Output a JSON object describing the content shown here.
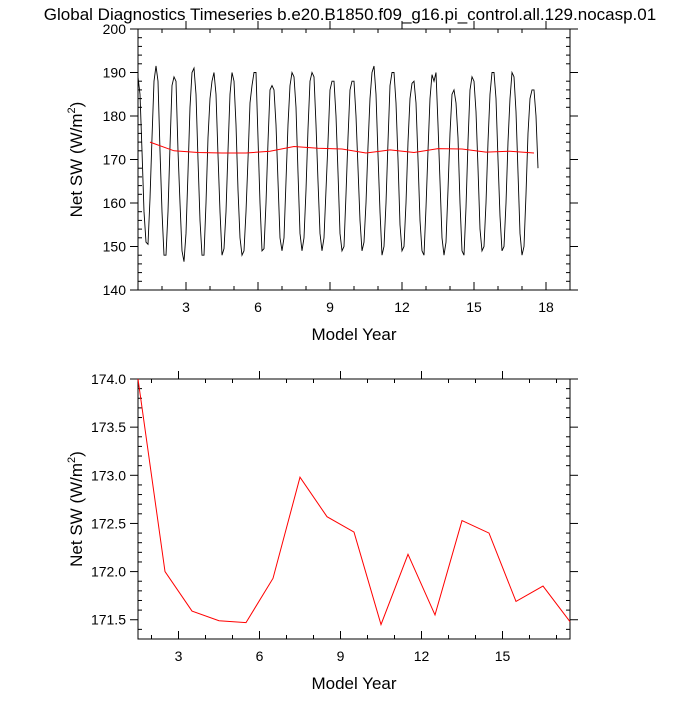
{
  "title": "Global Diagnostics Timeseries b.e20.B1850.f09_g16.pi_control.all.129.nocasp.01",
  "colors": {
    "monthly_line": "#000000",
    "annual_line": "#ff0000",
    "frame": "#000000"
  },
  "chart_data": [
    {
      "type": "line",
      "name": "top-panel",
      "xlabel": "Model Year",
      "ylabel_main": "Net SW (W/m",
      "ylabel_sup": "2",
      "ylabel_close": ")",
      "xlim": [
        1,
        19
      ],
      "ylim": [
        140,
        200
      ],
      "xticks": [
        3,
        6,
        9,
        12,
        15,
        18
      ],
      "yticks": [
        140,
        150,
        160,
        170,
        180,
        190,
        200
      ],
      "grid": false,
      "series": [
        {
          "role": "monthly",
          "color": "#000000",
          "x_start": 1.0,
          "x_step": 0.0833333,
          "values": [
            189,
            185,
            172,
            158,
            151,
            150.5,
            161,
            175,
            188,
            191.5,
            188,
            172,
            158,
            148,
            148,
            158,
            173,
            187,
            189,
            188,
            172,
            160,
            149,
            146.5,
            153,
            167,
            182,
            190,
            191,
            185,
            170,
            156,
            148,
            148,
            160,
            175,
            184,
            188,
            190,
            185,
            171,
            158,
            148,
            149.5,
            158,
            172,
            185,
            190,
            188,
            178,
            163,
            152,
            148,
            149,
            158,
            170,
            183,
            187,
            190,
            190,
            175,
            160,
            149,
            149.5,
            160,
            174,
            186,
            187,
            186,
            178,
            165,
            152,
            149,
            152,
            165,
            178,
            187,
            190,
            189,
            182,
            167,
            153,
            149,
            152,
            163,
            177,
            188,
            190,
            189,
            178,
            165,
            153,
            149,
            152,
            163,
            174,
            186,
            188,
            188,
            180,
            167,
            153,
            149,
            150,
            162,
            175,
            186,
            188,
            188,
            180,
            168,
            156,
            149,
            151,
            160,
            173,
            184,
            190,
            191.5,
            185,
            171,
            158,
            148,
            150,
            160,
            174,
            187,
            190,
            190,
            183,
            170,
            155,
            149,
            150,
            160,
            174,
            184,
            187.5,
            188,
            183,
            170,
            156,
            149,
            148,
            159,
            172,
            184,
            189.5,
            188,
            190,
            178,
            165,
            152,
            148,
            151,
            163,
            176,
            185,
            186,
            183,
            175,
            160,
            149,
            148,
            159,
            174,
            186,
            189,
            188,
            181,
            168,
            154,
            149,
            150,
            160,
            174,
            185,
            190,
            190,
            184,
            170,
            157,
            149,
            150,
            160,
            174,
            184,
            190,
            189,
            181,
            167,
            153,
            148,
            150,
            162,
            176,
            184,
            186,
            186,
            180,
            168
          ]
        },
        {
          "role": "annual",
          "color": "#ff0000",
          "x": [
            1.5,
            2.5,
            3.5,
            4.5,
            5.5,
            6.5,
            7.5,
            8.5,
            9.5,
            10.5,
            11.5,
            12.5,
            13.5,
            14.5,
            15.5,
            16.5,
            17.5
          ],
          "values": [
            174.0,
            172.0,
            171.6,
            171.5,
            171.5,
            171.9,
            173.0,
            172.6,
            172.4,
            171.5,
            172.2,
            171.6,
            172.5,
            172.4,
            171.7,
            171.9,
            171.5
          ]
        }
      ]
    },
    {
      "type": "line",
      "name": "bottom-panel",
      "xlabel": "Model Year",
      "ylabel_main": "Net SW (W/m",
      "ylabel_sup": "2",
      "ylabel_close": ")",
      "xlim": [
        1.5,
        17.5
      ],
      "ylim": [
        171.3,
        174.0
      ],
      "xticks": [
        3,
        6,
        9,
        12,
        15
      ],
      "yticks": [
        171.5,
        172.0,
        172.5,
        173.0,
        173.5,
        174.0
      ],
      "ytick_labels": [
        "171.5",
        "172.0",
        "172.5",
        "173.0",
        "173.5",
        "174.0"
      ],
      "grid": false,
      "series": [
        {
          "role": "annual",
          "color": "#ff0000",
          "x": [
            1.5,
            2.5,
            3.5,
            4.5,
            5.5,
            6.5,
            7.5,
            8.5,
            9.5,
            10.5,
            11.5,
            12.5,
            13.5,
            14.5,
            15.5,
            16.5,
            17.5
          ],
          "values": [
            174.0,
            172.0,
            171.59,
            171.49,
            171.47,
            171.93,
            172.98,
            172.57,
            172.41,
            171.45,
            172.18,
            171.55,
            172.53,
            172.4,
            171.69,
            171.85,
            171.48
          ]
        }
      ]
    }
  ]
}
